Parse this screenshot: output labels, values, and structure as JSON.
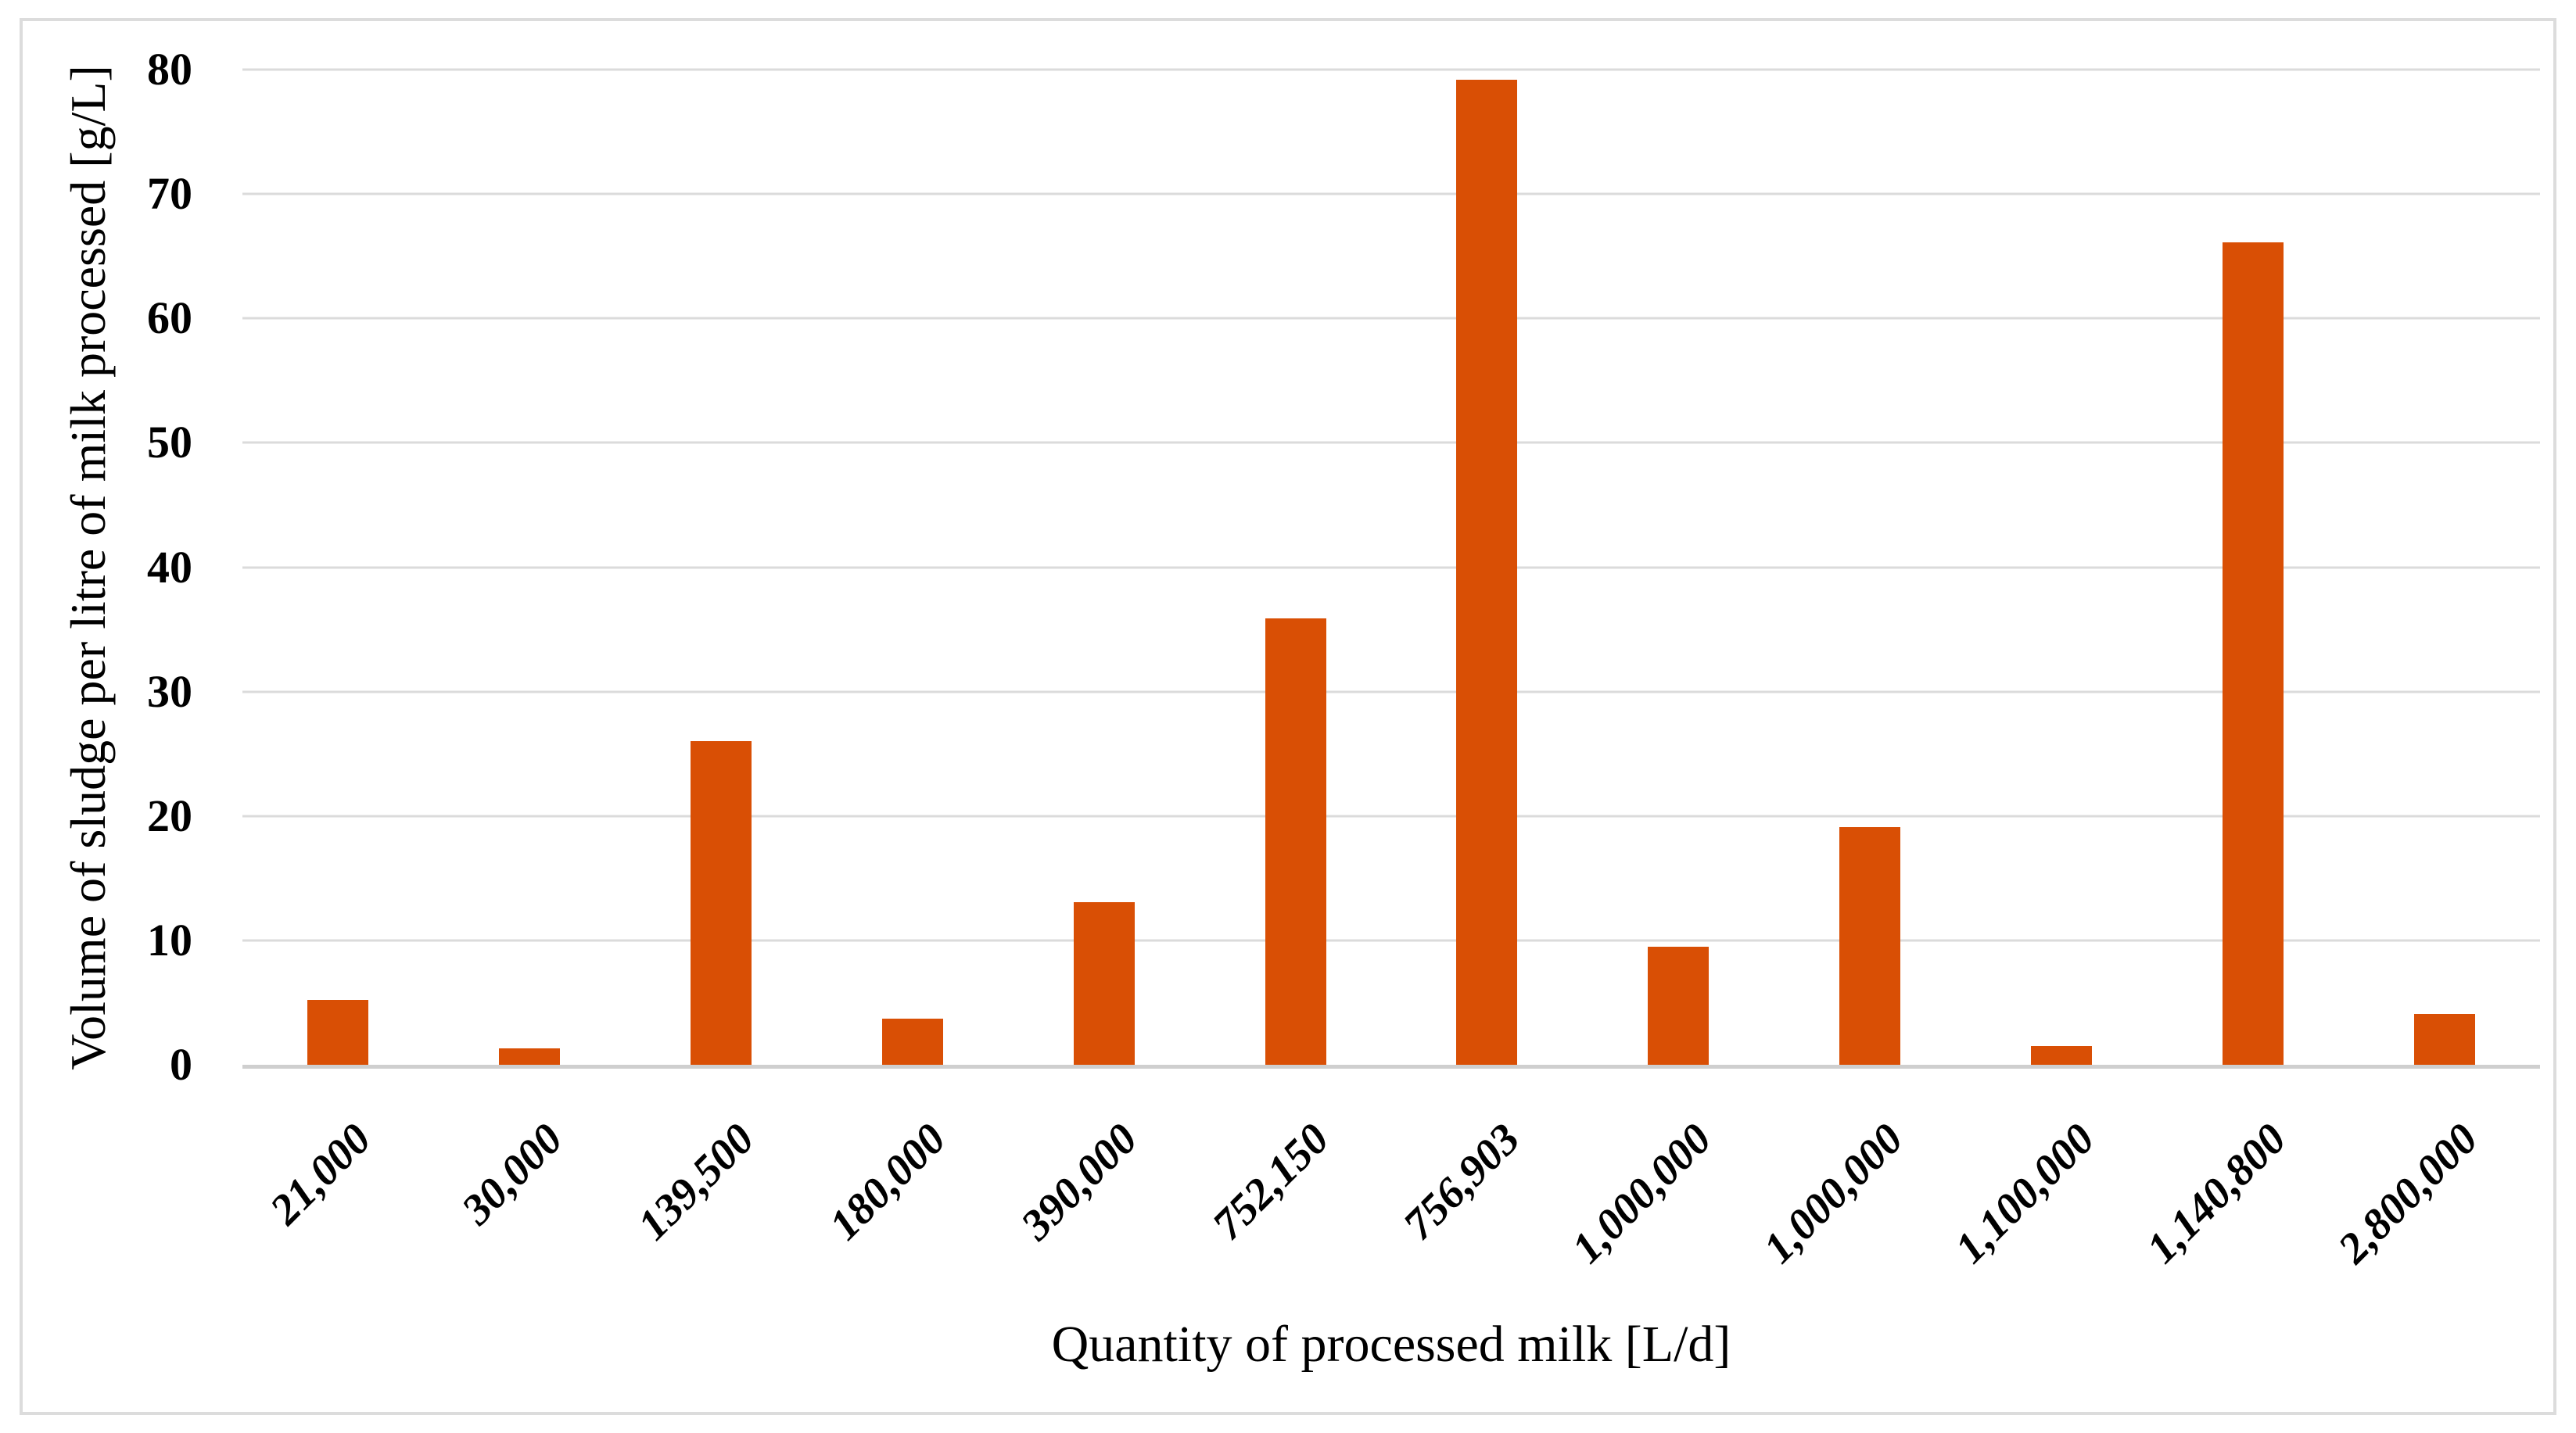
{
  "figure": {
    "background_color": "#ffffff",
    "border_color": "#dcdcdc"
  },
  "chart_data": {
    "type": "bar",
    "title": "",
    "categories": [
      "21,000",
      "30,000",
      "139,500",
      "180,000",
      "390,000",
      "752,150",
      "756,903",
      "1,000,000",
      "1,000,000",
      "1,100,000",
      "1,140,800",
      "2,800,000"
    ],
    "values": [
      5.2,
      1.3,
      26.0,
      3.7,
      13.1,
      35.9,
      79.2,
      9.5,
      19.1,
      1.5,
      66.1,
      4.1
    ],
    "xlabel": "Quantity of processed milk [L/d]",
    "ylabel": "Volume of sludge per litre of milk processed [g/L]",
    "ylim": [
      0,
      80
    ],
    "yticks": [
      0,
      10,
      20,
      30,
      40,
      50,
      60,
      70,
      80
    ],
    "grid": true,
    "legend_position": "none",
    "bar_color": "#d94f05",
    "gridline_color": "#dbdbdb",
    "axis_line_color": "#cfcfcf",
    "x_label_rotation_deg": 45
  }
}
